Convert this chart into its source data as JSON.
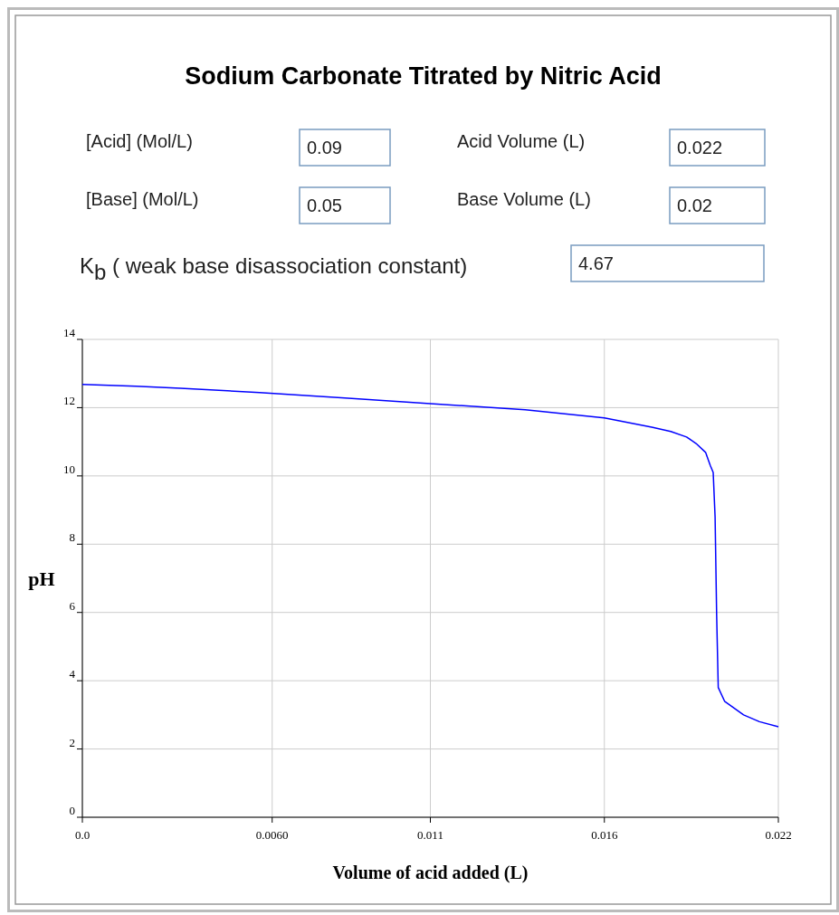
{
  "chart_data": {
    "type": "line",
    "title": "Sodium Carbonate Titrated by Nitric Acid",
    "xlabel": "Volume of acid added (L)",
    "ylabel": "pH",
    "annotations": [
      "[Acid] (Mol/L)",
      "0.09",
      "Acid Volume (L)",
      "0.022",
      "[Base] (Mol/L)",
      "0.05",
      "Base Volume (L)",
      "0.02",
      "K$_{b}$ ( weak base disassociation constant)",
      "4.67"
    ],
    "x": [
      0,
      0.0017,
      0.0031,
      0.0056,
      0.0083,
      0.011,
      0.014,
      0.0165,
      0.018,
      0.0186,
      0.0191,
      0.0194,
      0.0197,
      0.01985,
      0.01994,
      0.02,
      0.02005,
      0.0201,
      0.0203,
      0.0209,
      0.0214,
      0.022
    ],
    "series": [
      {
        "color": "#0000ff",
        "values": [
          12.68,
          12.63,
          12.57,
          12.44,
          12.28,
          12.12,
          11.94,
          11.7,
          11.43,
          11.3,
          11.14,
          10.95,
          10.69,
          10.3,
          10.1,
          8.8,
          5.9,
          3.8,
          3.4,
          3.0,
          2.8,
          2.65
        ]
      }
    ],
    "xlim": [
      0,
      0.022
    ],
    "xticks": [
      {
        "value": 0,
        "label": "0.0"
      },
      {
        "value": 0.006,
        "label": "0.0060"
      },
      {
        "value": 0.011,
        "label": "0.011"
      },
      {
        "value": 0.0165,
        "label": "0.016"
      },
      {
        "value": 0.022,
        "label": "0.022"
      }
    ],
    "ylim": [
      0,
      14
    ],
    "yticks": [
      0,
      2,
      4,
      6,
      8,
      10,
      12,
      14
    ],
    "grid": true,
    "marker": "none",
    "line_style": "solid"
  }
}
